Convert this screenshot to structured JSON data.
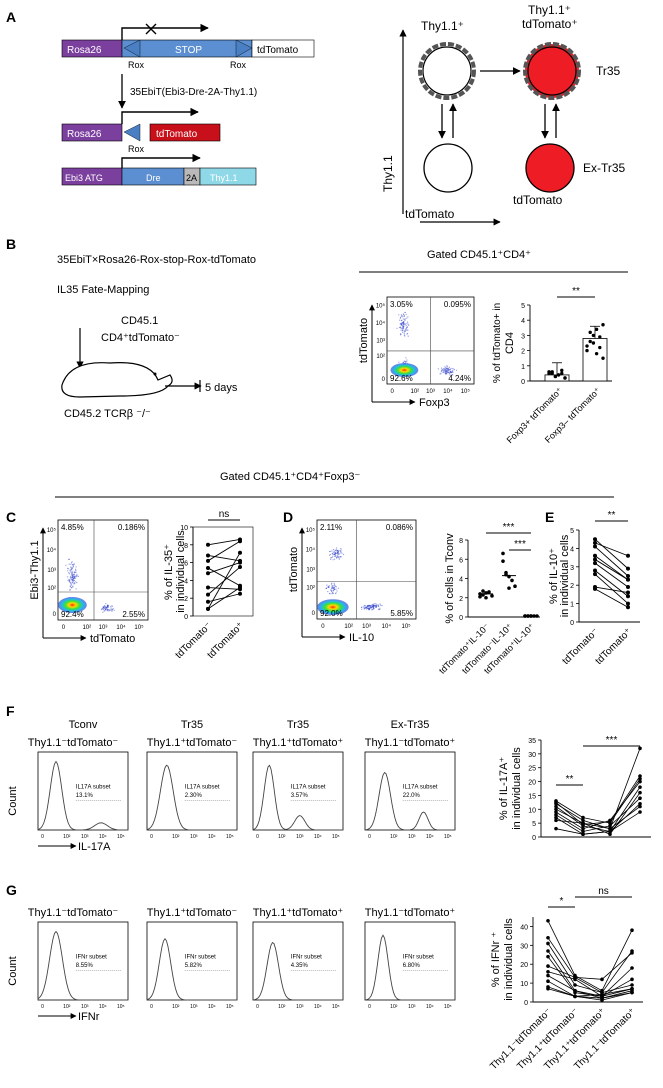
{
  "panel_letters": [
    "A",
    "B",
    "C",
    "D",
    "E",
    "F",
    "G"
  ],
  "panelA": {
    "construct1": {
      "rosa26": "Rosa26",
      "stop": "STOP",
      "rox": "Rox",
      "tdtomato": "tdTomato"
    },
    "arrow_label": "35EbiT(Ebi3-Dre-2A-Thy1.1)",
    "construct2": {
      "rosa26": "Rosa26",
      "rox": "Rox",
      "tdtomato": "tdTomato"
    },
    "construct3": {
      "ebi3": "Ebi3 ATG",
      "dre": "Dre",
      "p2a": "2A",
      "thy": "Thy1.1"
    },
    "fate": {
      "ylabel": "Thy1.1",
      "xlabel_left": "tdTomato",
      "xlabel_bottom": "tdTomato",
      "cell_tl": "Thy1.1⁺",
      "cell_tr": "Thy1.1⁺\ntdTomato⁺",
      "label_tr": "Tr35",
      "label_br": "Ex-Tr35",
      "red": "#ee1c25"
    }
  },
  "panelB": {
    "title": "35EbiT×Rosa26-Rox-stop-Rox-tdTomato",
    "subtitle": "IL35 Fate-Mapping",
    "donor_line1": "CD45.1",
    "donor_line2": "CD4⁺tdTomato⁻",
    "recipient": "CD45.2 TCRβ ⁻/⁻",
    "time": "5 days",
    "gate": "Gated CD45.1⁺CD4⁺",
    "facs": {
      "ylabel": "tdTomato",
      "xlabel": "Foxp3",
      "q_tl": "3.05%",
      "q_tr": "0.095%",
      "q_bl": "92.6%",
      "q_br": "4.24%"
    },
    "bar": {
      "ylabel": "% of tdTomato+ in CD4",
      "sig": "**",
      "categories": [
        "Foxp3+ tdTomato⁺",
        "Foxp3– tdTomato⁺"
      ],
      "yticks": [
        "0",
        "1",
        "2",
        "3",
        "4",
        "5"
      ]
    }
  },
  "gate_cd": "Gated CD45.1⁺CD4⁺Foxp3⁻",
  "panelC": {
    "facs": {
      "ylabel": "Ebi3-Thy1.1",
      "xlabel": "tdTomato",
      "q_tl": "4.85%",
      "q_tr": "0.186%",
      "q_bl": "92.4%",
      "q_br": "2.55%"
    },
    "ylabel": "% of IL-35⁺ in individual cells",
    "sig": "ns",
    "categories": [
      "tdTomato⁻",
      "tdTomato⁺"
    ],
    "yticks": [
      "0",
      "2",
      "4",
      "6",
      "8",
      "10"
    ]
  },
  "panelD": {
    "facs": {
      "ylabel": "tdTomato",
      "xlabel": "IL-10",
      "q_tl": "2.11%",
      "q_tr": "0.086%",
      "q_bl": "92.0%",
      "q_br": "5.85%"
    },
    "ylabel": "% of cells in Tconv",
    "sig1": "***",
    "sig2": "***",
    "categories": [
      "tdTomato⁺IL-10⁻",
      "tdTomato⁻IL-10⁺",
      "tdTomato⁺IL-10⁺"
    ],
    "yticks": [
      "0",
      "2",
      "4",
      "6",
      "8"
    ]
  },
  "panelE": {
    "ylabel": "% of IL-10⁺ in individual cells",
    "sig": "**",
    "categories": [
      "tdTomato⁻",
      "tdTomato⁺"
    ],
    "yticks": [
      "0",
      "1",
      "2",
      "3",
      "4",
      "5"
    ]
  },
  "panelF": {
    "groups": [
      "Tconv",
      "Tr35",
      "Tr35",
      "Ex-Tr35"
    ],
    "populations": [
      "Thy1.1⁻tdTomato⁻",
      "Thy1.1⁺tdTomato⁻",
      "Thy1.1⁺tdTomato⁺",
      "Thy1.1⁻tdTomato⁺"
    ],
    "subset": "IL17A subset",
    "percents": [
      "13.1%",
      "2.30%",
      "3.57%",
      "22.0%"
    ],
    "count": "Count",
    "xlabel": "IL-17A",
    "ylabel": "% of IL-17A⁺ in individual cells",
    "sig1": "**",
    "sig2": "***",
    "yticks": [
      "0",
      "5",
      "10",
      "15",
      "20",
      "25",
      "30",
      "35"
    ]
  },
  "panelG": {
    "populations": [
      "Thy1.1⁻tdTomato⁻",
      "Thy1.1⁺tdTomato⁻",
      "Thy1.1⁺tdTomato⁺",
      "Thy1.1⁻tdTomato⁺"
    ],
    "subset": "IFNr subset",
    "percents": [
      "8.55%",
      "5.82%",
      "4.35%",
      "6.80%"
    ],
    "count": "Count",
    "xlabel": "IFNr",
    "ylabel": "% of IFNr⁺ in individual cells",
    "sig1": "*",
    "sig2": "ns",
    "yticks": [
      "0",
      "10",
      "20",
      "30",
      "40"
    ],
    "categories": [
      "Thy1.1⁻tdTomato⁻",
      "Thy1.1⁺tdTomato⁻",
      "Thy1.1⁺tdTomato⁺",
      "Thy1.1⁻tdTomato⁺"
    ]
  },
  "tick_labels": [
    "0",
    "10²",
    "10³",
    "10⁴",
    "10⁵"
  ],
  "chart_data": [
    {
      "type": "bar",
      "title": "% of tdTomato+ in CD4",
      "categories": [
        "Foxp3+ tdTomato+",
        "Foxp3- tdTomato+"
      ],
      "values": [
        0.4,
        2.8
      ],
      "points": [
        [
          0.6,
          0.5,
          0.3,
          0.4,
          0.7,
          0.2,
          0.5,
          0.6,
          0.3,
          0.4,
          0.5,
          0.2
        ],
        [
          2.3,
          3.2,
          2.5,
          1.8,
          2.9,
          3.7,
          2.0,
          2.6,
          3.0,
          3.4,
          2.2,
          1.5
        ]
      ],
      "ylim": [
        0,
        5
      ]
    },
    {
      "type": "line",
      "title": "% of IL-35+ in individual cells",
      "categories": [
        "tdTomato-",
        "tdTomato+"
      ],
      "pairs": [
        [
          8,
          8.6
        ],
        [
          6.2,
          8.4
        ],
        [
          5.4,
          3.4
        ],
        [
          1.6,
          2.5
        ],
        [
          0.8,
          3.2
        ],
        [
          4.8,
          6.0
        ],
        [
          3.2,
          3.0
        ],
        [
          6.8,
          6.2
        ],
        [
          2.4,
          5.5
        ],
        [
          0.8,
          7.1
        ]
      ],
      "ylim": [
        0,
        10
      ]
    },
    {
      "type": "scatter",
      "title": "% of cells in Tconv",
      "categories": [
        "tdTomato+IL-10-",
        "tdTomato-IL-10+",
        "tdTomato+IL-10+"
      ],
      "values": [
        2.4,
        4.3,
        0.1
      ],
      "points": [
        [
          2.1,
          2.3,
          2.5,
          2.6,
          2.2,
          2.4,
          2.7,
          2.0
        ],
        [
          5.8,
          4.6,
          4.2,
          3.8,
          3.2,
          6.6,
          4.4,
          3.0
        ],
        [
          0.1,
          0.1,
          0.1,
          0.1,
          0.1,
          0.1,
          0.1,
          0.1
        ]
      ],
      "ylim": [
        0,
        8
      ]
    },
    {
      "type": "line",
      "title": "% of IL-10+ in individual cells",
      "categories": [
        "tdTomato-",
        "tdTomato+"
      ],
      "pairs": [
        [
          4.3,
          3.6
        ],
        [
          4.1,
          2.5
        ],
        [
          3.6,
          2.3
        ],
        [
          3.4,
          2.3
        ],
        [
          3.2,
          1.9
        ],
        [
          2.8,
          1.4
        ],
        [
          2.6,
          1.0
        ],
        [
          1.9,
          1.6
        ],
        [
          1.8,
          0.8
        ],
        [
          4.5,
          2.9
        ]
      ],
      "ylim": [
        0,
        5
      ]
    },
    {
      "type": "line",
      "title": "% of IL-17A+ in individual cells",
      "categories": [
        "Thy1.1-tdTomato-",
        "Thy1.1+tdTomato-",
        "Thy1.1+tdTomato+",
        "Thy1.1-tdTomato+"
      ],
      "series": [
        [
          13,
          7,
          5,
          21
        ],
        [
          12,
          6,
          3,
          32
        ],
        [
          11,
          4,
          2,
          18
        ],
        [
          10,
          5,
          1,
          16
        ],
        [
          9,
          3,
          6,
          20
        ],
        [
          8,
          2,
          4,
          14
        ],
        [
          7,
          1,
          2,
          12
        ],
        [
          6,
          5,
          3,
          11
        ],
        [
          12.5,
          4.5,
          5.5,
          22
        ],
        [
          3,
          1,
          2,
          9
        ]
      ],
      "ylim": [
        0,
        35
      ]
    },
    {
      "type": "line",
      "title": "% of IFNr+ in individual cells",
      "categories": [
        "Thy1.1-tdTomato-",
        "Thy1.1+tdTomato-",
        "Thy1.1+tdTomato+",
        "Thy1.1-tdTomato+"
      ],
      "series": [
        [
          43,
          14,
          6,
          38
        ],
        [
          34,
          13,
          12,
          26
        ],
        [
          31,
          9,
          5,
          27
        ],
        [
          27,
          6,
          3,
          18
        ],
        [
          24,
          5,
          3,
          12
        ],
        [
          19,
          13,
          5,
          9
        ],
        [
          16,
          12,
          3,
          7
        ],
        [
          14,
          6,
          2,
          5
        ],
        [
          11,
          3,
          4,
          7
        ],
        [
          8,
          3,
          2,
          6
        ],
        [
          7,
          3,
          1,
          5
        ]
      ],
      "ylim": [
        0,
        45
      ]
    }
  ]
}
